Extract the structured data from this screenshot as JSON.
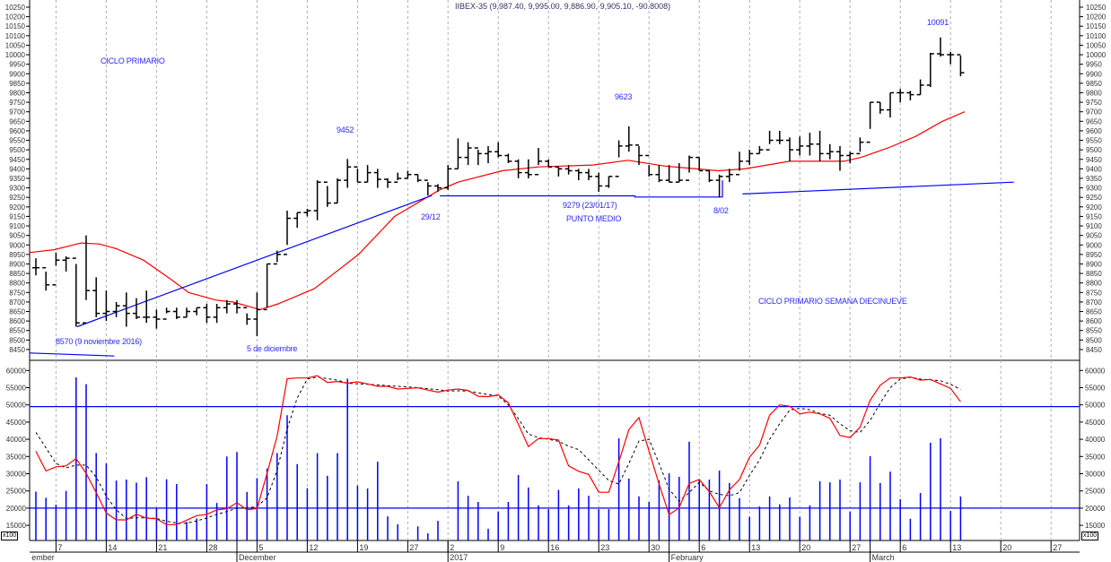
{
  "chart_data": {
    "type": "ohlc",
    "title": "IIBEX-35 (9,987.40, 9,995.00, 9,886.90, 9,905.10, -90.8008)",
    "bar_fields": [
      "high",
      "low",
      "close",
      "volume_x100"
    ],
    "bars": [
      [
        8930,
        8840,
        8880,
        24800
      ],
      [
        8860,
        8760,
        8790,
        23000
      ],
      [
        8960,
        8890,
        8920,
        21000
      ],
      [
        8940,
        8860,
        8930,
        25000
      ],
      [
        8900,
        8570,
        8590,
        58000
      ],
      [
        9050,
        8710,
        8760,
        56000
      ],
      [
        8830,
        8620,
        8640,
        36000
      ],
      [
        8760,
        8600,
        8650,
        33000
      ],
      [
        8700,
        8620,
        8680,
        28000
      ],
      [
        8750,
        8570,
        8640,
        28300
      ],
      [
        8720,
        8610,
        8620,
        27400
      ],
      [
        8760,
        8590,
        8620,
        29000
      ],
      [
        8660,
        8560,
        8610,
        20000
      ],
      [
        8670,
        8640,
        8650,
        28400
      ],
      [
        8670,
        8610,
        8620,
        27000
      ],
      [
        8670,
        8620,
        8650,
        16000
      ],
      [
        8670,
        8630,
        8670,
        17000
      ],
      [
        8690,
        8590,
        8620,
        27000
      ],
      [
        8690,
        8590,
        8670,
        21500
      ],
      [
        8710,
        8640,
        8690,
        35000
      ],
      [
        8710,
        8640,
        8670,
        36300
      ],
      [
        8640,
        8580,
        8610,
        24700
      ],
      [
        8750,
        8520,
        8660,
        28700
      ],
      [
        8900,
        8670,
        8900,
        31500
      ],
      [
        8970,
        8910,
        8950,
        36000
      ],
      [
        9180,
        9000,
        9140,
        47000
      ],
      [
        9170,
        9090,
        9170,
        32800
      ],
      [
        9190,
        9150,
        9180,
        25800
      ],
      [
        9340,
        9130,
        9330,
        36000
      ],
      [
        9310,
        9200,
        9220,
        29400
      ],
      [
        9350,
        9220,
        9340,
        36000
      ],
      [
        9452,
        9300,
        9410,
        57600
      ],
      [
        9400,
        9330,
        9330,
        26560
      ],
      [
        9420,
        9330,
        9380,
        25700
      ],
      [
        9400,
        9300,
        9345,
        33500
      ],
      [
        9350,
        9300,
        9330,
        17600
      ],
      [
        9380,
        9340,
        9350,
        15300
      ],
      [
        9390,
        9350,
        9370,
        0
      ],
      [
        9370,
        9330,
        9340,
        14700
      ],
      [
        9330,
        9260,
        9310,
        12700
      ],
      [
        9320,
        9280,
        9300,
        16300
      ],
      [
        9420,
        9290,
        9400,
        0
      ],
      [
        9560,
        9400,
        9460,
        27800
      ],
      [
        9540,
        9420,
        9510,
        23600
      ],
      [
        9500,
        9420,
        9480,
        21800
      ],
      [
        9520,
        9430,
        9490,
        14000
      ],
      [
        9540,
        9460,
        9470,
        19000
      ],
      [
        9480,
        9430,
        9440,
        21800
      ],
      [
        9450,
        9350,
        9380,
        29600
      ],
      [
        9450,
        9350,
        9370,
        26000
      ],
      [
        9510,
        9420,
        9440,
        20800
      ],
      [
        9450,
        9410,
        9410,
        19700
      ],
      [
        9410,
        9360,
        9400,
        25300
      ],
      [
        9420,
        9370,
        9390,
        20800
      ],
      [
        9400,
        9340,
        9380,
        25700
      ],
      [
        9400,
        9340,
        9360,
        23600
      ],
      [
        9380,
        9279,
        9310,
        19700
      ],
      [
        9360,
        9300,
        9360,
        19700
      ],
      [
        9550,
        9460,
        9520,
        40300
      ],
      [
        9623,
        9490,
        9525,
        28600
      ],
      [
        9520,
        9420,
        9470,
        23400
      ],
      [
        9420,
        9360,
        9370,
        21800
      ],
      [
        9420,
        9330,
        9340,
        28000
      ],
      [
        9420,
        9330,
        9330,
        30100
      ],
      [
        9430,
        9330,
        9340,
        29100
      ],
      [
        9470,
        9380,
        9460,
        39300
      ],
      [
        9460,
        9390,
        9390,
        28300
      ],
      [
        9390,
        9330,
        9340,
        28300
      ],
      [
        9370,
        9250,
        9360,
        30900
      ],
      [
        9400,
        9330,
        9370,
        27300
      ],
      [
        9490,
        9390,
        9440,
        22900
      ],
      [
        9500,
        9420,
        9480,
        17500
      ],
      [
        9520,
        9480,
        9500,
        20500
      ],
      [
        9600,
        9530,
        9550,
        23400
      ],
      [
        9600,
        9530,
        9550,
        21100
      ],
      [
        9565,
        9440,
        9500,
        23100
      ],
      [
        9570,
        9470,
        9520,
        17500
      ],
      [
        9590,
        9470,
        9530,
        20800
      ],
      [
        9600,
        9440,
        9480,
        27800
      ],
      [
        9530,
        9450,
        9490,
        27500
      ],
      [
        9520,
        9390,
        9470,
        28300
      ],
      [
        9490,
        9430,
        9480,
        19000
      ],
      [
        9565,
        9490,
        9540,
        27500
      ],
      [
        9750,
        9610,
        9750,
        35100
      ],
      [
        9750,
        9690,
        9710,
        27300
      ],
      [
        9800,
        9670,
        9800,
        30600
      ],
      [
        9820,
        9750,
        9800,
        22600
      ],
      [
        9810,
        9760,
        9790,
        16900
      ],
      [
        9870,
        9790,
        9840,
        24400
      ],
      [
        10010,
        9830,
        10005,
        39000
      ],
      [
        10091,
        9990,
        10000,
        40300
      ],
      [
        10015,
        9950,
        10000,
        19200
      ],
      [
        9995,
        9886.9,
        9905.1,
        23400
      ]
    ],
    "moving_average": [
      [
        -0.6,
        8960
      ],
      [
        1.8,
        8975
      ],
      [
        4.5,
        9010
      ],
      [
        6.3,
        9005
      ],
      [
        8,
        8980
      ],
      [
        10.7,
        8920
      ],
      [
        13.4,
        8820
      ],
      [
        15.2,
        8750
      ],
      [
        17.9,
        8710
      ],
      [
        19.6,
        8700
      ],
      [
        22.3,
        8660
      ],
      [
        24.1,
        8690
      ],
      [
        27.7,
        8770
      ],
      [
        32.1,
        8950
      ],
      [
        35.7,
        9150
      ],
      [
        40.2,
        9290
      ],
      [
        42,
        9330
      ],
      [
        46.4,
        9390
      ],
      [
        50,
        9410
      ],
      [
        55.4,
        9420
      ],
      [
        58.9,
        9445
      ],
      [
        62.5,
        9415
      ],
      [
        67.9,
        9390
      ],
      [
        70.5,
        9400
      ],
      [
        75,
        9440
      ],
      [
        80.4,
        9440
      ],
      [
        82.1,
        9460
      ],
      [
        84.8,
        9510
      ],
      [
        87.5,
        9570
      ],
      [
        90.2,
        9650
      ],
      [
        92.4,
        9700
      ]
    ],
    "trend_lines": [
      [
        [
          4.1,
          8570
        ],
        [
          39.4,
          9260
        ]
      ],
      [
        [
          40.2,
          9258
        ],
        [
          59.6,
          9258
        ],
        [
          59.6,
          9252
        ],
        [
          68.3,
          9252
        ],
        [
          68.3,
          9340
        ]
      ],
      [
        [
          70.3,
          9268
        ],
        [
          97.3,
          9330
        ]
      ],
      [
        [
          -0.6,
          8432
        ],
        [
          7.8,
          8416
        ]
      ]
    ],
    "oscillator_red": [
      36500,
      30800,
      32000,
      32300,
      34400,
      30100,
      24500,
      18600,
      16600,
      16600,
      18200,
      17100,
      16900,
      15200,
      15200,
      16500,
      17800,
      18200,
      19500,
      19800,
      21600,
      19500,
      19900,
      30100,
      40900,
      57600,
      57800,
      57800,
      58500,
      56500,
      56800,
      56300,
      56700,
      56100,
      55400,
      55400,
      54600,
      54800,
      54950,
      54300,
      53700,
      54300,
      54600,
      54200,
      52500,
      52400,
      52900,
      50600,
      44400,
      37900,
      40200,
      40200,
      39800,
      32300,
      30700,
      29800,
      24600,
      24600,
      33500,
      42800,
      46300,
      36600,
      27000,
      18100,
      20100,
      27200,
      28300,
      24800,
      20100,
      25300,
      28300,
      34800,
      38300,
      47000,
      50000,
      49600,
      47400,
      47900,
      47400,
      46100,
      41100,
      40500,
      43500,
      51300,
      55700,
      57800,
      57800,
      58100,
      57200,
      57400,
      56100,
      54800,
      50900
    ],
    "oscillator_black_dashed": [
      42000,
      37500,
      33000,
      31700,
      32500,
      32500,
      29000,
      23500,
      19500,
      17000,
      17200,
      17200,
      17000,
      16200,
      15700,
      15600,
      16300,
      17100,
      18200,
      19000,
      20000,
      20000,
      20500,
      23000,
      31000,
      43000,
      52000,
      57500,
      58100,
      57600,
      57200,
      56300,
      56100,
      56000,
      55800,
      55600,
      55400,
      55200,
      55000,
      54700,
      54400,
      54000,
      54100,
      54000,
      53500,
      53000,
      52600,
      50000,
      46000,
      41500,
      40500,
      40000,
      39400,
      38000,
      37000,
      34000,
      31000,
      28000,
      27000,
      33000,
      39500,
      40000,
      33000,
      25500,
      22000,
      24500,
      27500,
      25000,
      24000,
      23600,
      24500,
      29500,
      34000,
      40000,
      44500,
      48500,
      49000,
      48600,
      47500,
      47000,
      44500,
      42500,
      42000,
      45500,
      50500,
      55000,
      57500,
      58000,
      57500,
      57300,
      57000,
      56000,
      54500
    ],
    "reference_lines": [
      49500,
      20000
    ],
    "price_axis": {
      "min": 8450,
      "max": 10250,
      "step": 50
    },
    "lower_axis": {
      "min": 15000,
      "max": 60000,
      "step": 5000,
      "unit_label": "x100"
    },
    "week_ticks": [
      {
        "i": 2,
        "label": "7"
      },
      {
        "i": 7,
        "label": "14"
      },
      {
        "i": 12,
        "label": "21"
      },
      {
        "i": 17,
        "label": "28"
      },
      {
        "i": 22,
        "label": "5"
      },
      {
        "i": 27,
        "label": "12"
      },
      {
        "i": 32,
        "label": "19"
      },
      {
        "i": 37,
        "label": "27"
      },
      {
        "i": 41,
        "label": "2"
      },
      {
        "i": 46,
        "label": "9"
      },
      {
        "i": 51,
        "label": "16"
      },
      {
        "i": 56,
        "label": "23"
      },
      {
        "i": 61,
        "label": "30"
      },
      {
        "i": 66,
        "label": "6"
      },
      {
        "i": 71,
        "label": "13"
      },
      {
        "i": 76,
        "label": "20"
      },
      {
        "i": 81,
        "label": "27"
      },
      {
        "i": 86,
        "label": "6"
      },
      {
        "i": 91,
        "label": "13"
      },
      {
        "i": 96,
        "label": "20"
      },
      {
        "i": 101,
        "label": "27"
      }
    ],
    "months": [
      {
        "i": -0.6,
        "label": "ember"
      },
      {
        "i": 20,
        "label": "December"
      },
      {
        "i": 41,
        "label": "2017"
      },
      {
        "i": 63,
        "label": "February"
      },
      {
        "i": 83,
        "label": "March"
      }
    ],
    "annotations": {
      "ciclo_primario": "CICLO PRIMARIO",
      "peak_dec": "9452",
      "peak_jan": "9623",
      "peak_mar": "10091",
      "date_2912": "29/12",
      "mid_value": "9279 (23/01/17)",
      "punto_medio": "PUNTO MEDIO",
      "date_0802": "8/02",
      "ciclo_semana": "CICLO PRIMARIO SEMANA DIECINUEVE",
      "low_nov": "8570 (9 noviembre 2016)",
      "low_dec": "5 de diciembre"
    },
    "colors": {
      "bars": "#000000",
      "ma": "#ff0000",
      "trend": "#0000ff",
      "volume": "#0000ff",
      "osc_red": "#ff0000",
      "osc_black": "#000000",
      "grid": "#b0b0b0"
    }
  }
}
